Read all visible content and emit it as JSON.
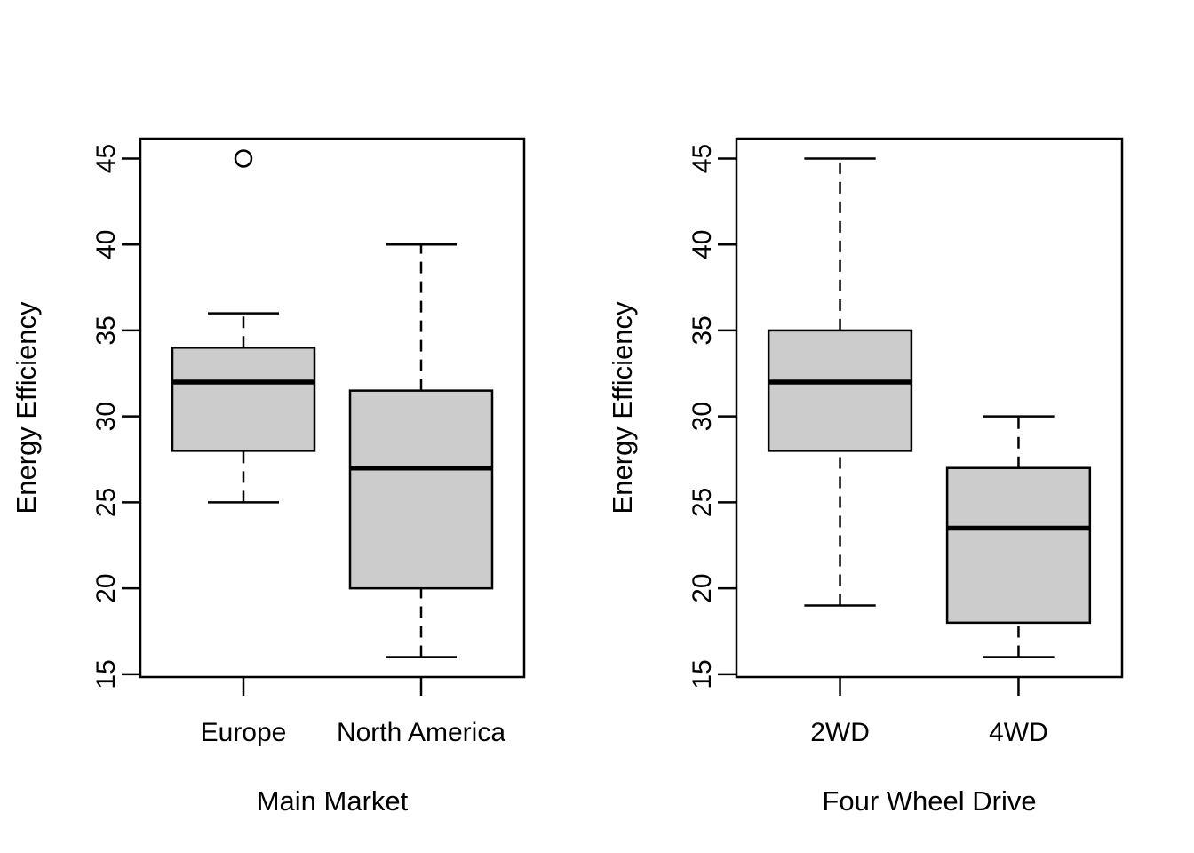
{
  "chart_data": [
    {
      "type": "boxplot",
      "panel": "left",
      "title": "",
      "xlabel": "Main Market",
      "ylabel": "Energy Efficiency",
      "categories": [
        "Europe",
        "North America"
      ],
      "y_ticks": [
        15,
        20,
        25,
        30,
        35,
        40,
        45
      ],
      "ylim": [
        14.84,
        46.16
      ],
      "grid": false,
      "series": [
        {
          "name": "Europe",
          "whisker_low": 25,
          "q1": 28,
          "median": 32,
          "q3": 34,
          "whisker_high": 36,
          "outliers": [
            45
          ]
        },
        {
          "name": "North America",
          "whisker_low": 16,
          "q1": 20,
          "median": 27,
          "q3": 31.5,
          "whisker_high": 40,
          "outliers": []
        }
      ],
      "style": {
        "box_fill": "#cccccc",
        "line_color": "#000000",
        "background": "#ffffff"
      }
    },
    {
      "type": "boxplot",
      "panel": "right",
      "title": "",
      "xlabel": "Four Wheel Drive",
      "ylabel": "Energy Efficiency",
      "categories": [
        "2WD",
        "4WD"
      ],
      "y_ticks": [
        15,
        20,
        25,
        30,
        35,
        40,
        45
      ],
      "ylim": [
        14.84,
        46.16
      ],
      "grid": false,
      "series": [
        {
          "name": "2WD",
          "whisker_low": 19,
          "q1": 28,
          "median": 32,
          "q3": 35,
          "whisker_high": 45,
          "outliers": []
        },
        {
          "name": "4WD",
          "whisker_low": 16,
          "q1": 18,
          "median": 23.5,
          "q3": 27,
          "whisker_high": 30,
          "outliers": []
        }
      ],
      "style": {
        "box_fill": "#cccccc",
        "line_color": "#000000",
        "background": "#ffffff"
      }
    }
  ]
}
